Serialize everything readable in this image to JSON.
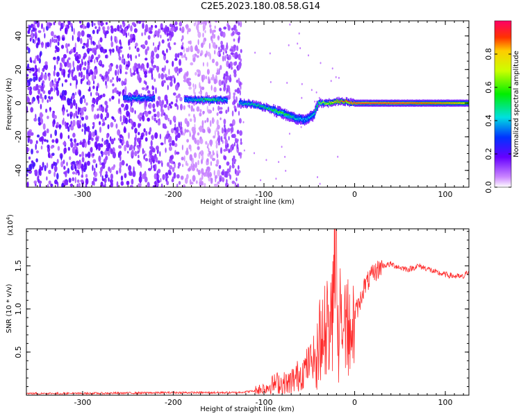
{
  "figure": {
    "title": "C2E5.2023.180.08.58.G14"
  },
  "chart_data": [
    {
      "type": "heatmap",
      "name": "spectrogram",
      "xlabel": "Height of straight line (km)",
      "ylabel": "Frequency (Hz)",
      "xlim": [
        -362,
        126
      ],
      "ylim": [
        -50,
        49
      ],
      "xticks": [
        -300,
        -200,
        -100,
        0,
        100
      ],
      "xtick_labels": [
        "-300",
        "-200",
        "-100",
        "0",
        "100"
      ],
      "yticks": [
        -40,
        -20,
        0,
        20,
        40
      ],
      "ytick_labels": [
        "-40",
        "-20",
        "0",
        "20",
        "40"
      ],
      "colorbar": {
        "label": "Normalized spectral amplitude",
        "range": [
          0,
          1
        ],
        "ticks": [
          0.0,
          0.2,
          0.4,
          0.6,
          0.8
        ],
        "tick_labels": [
          "0.0",
          "0.2",
          "0.4",
          "0.6",
          "0.8"
        ],
        "colormap": "rainbow (purple to red)"
      },
      "noise_region_x": [
        -362,
        -125
      ],
      "signal_track": {
        "x": [
          -255,
          -240,
          -225,
          -185,
          -160,
          -140,
          -125,
          -110,
          -95,
          -80,
          -65,
          -55,
          -45,
          -40,
          -30,
          -20,
          -10,
          0,
          20,
          50,
          80,
          110,
          126
        ],
        "y": [
          3,
          3,
          3,
          2,
          2,
          2,
          0,
          -1,
          -3,
          -6,
          -9,
          -10,
          -7,
          0,
          0,
          1,
          1,
          0,
          0,
          0,
          0,
          0,
          0
        ],
        "peak_amplitude": [
          0.35,
          0.45,
          0.35,
          0.4,
          0.6,
          0.4,
          0.45,
          0.5,
          0.55,
          0.6,
          0.45,
          0.4,
          0.45,
          0.6,
          0.75,
          0.85,
          0.9,
          0.95,
          0.95,
          0.95,
          0.9,
          0.85,
          0.8
        ]
      },
      "grid": false
    },
    {
      "type": "line",
      "name": "snr",
      "xlabel": "Height of straight line (km)",
      "ylabel": "SNR (10 * v/v)",
      "y_multiplier_label": "(x10",
      "y_multiplier_exp": "4",
      "xlim": [
        -362,
        126
      ],
      "ylim": [
        0,
        1.93
      ],
      "xticks": [
        -300,
        -200,
        -100,
        0,
        100
      ],
      "xtick_labels": [
        "-300",
        "-200",
        "-100",
        "0",
        "100"
      ],
      "yticks": [
        0.5,
        1.0,
        1.5
      ],
      "ytick_labels": [
        "0.5",
        "1.0",
        "1.5"
      ],
      "color": "#ff2b2b",
      "series_envelope": {
        "x": [
          -362,
          -300,
          -200,
          -130,
          -110,
          -95,
          -85,
          -75,
          -65,
          -55,
          -45,
          -40,
          -35,
          -30,
          -25,
          -22,
          -20,
          -15,
          -10,
          -5,
          0,
          5,
          10,
          20,
          30,
          40,
          50,
          60,
          70,
          80,
          90,
          100,
          110,
          120,
          126
        ],
        "y": [
          0.02,
          0.02,
          0.03,
          0.03,
          0.05,
          0.1,
          0.15,
          0.12,
          0.2,
          0.3,
          0.45,
          0.65,
          0.8,
          1.0,
          1.2,
          1.35,
          1.0,
          1.05,
          1.1,
          1.0,
          0.95,
          1.05,
          1.25,
          1.4,
          1.5,
          1.52,
          1.48,
          1.46,
          1.5,
          1.47,
          1.42,
          1.4,
          1.38,
          1.37,
          1.45
        ]
      },
      "grid": false
    }
  ]
}
